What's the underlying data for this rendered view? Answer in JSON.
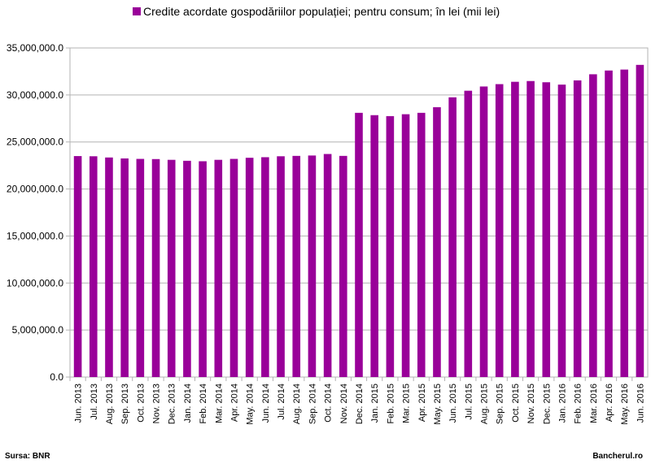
{
  "chart_data": {
    "type": "bar",
    "legend": {
      "label": "Credite acordate gospodăriilor populației; pentru consum; în lei (mii lei)",
      "position": "top-center"
    },
    "color": "#990099",
    "categories": [
      "Jun. 2013",
      "Jul. 2013",
      "Aug. 2013",
      "Sep. 2013",
      "Oct. 2013",
      "Nov. 2013",
      "Dec. 2013",
      "Jan. 2014",
      "Feb. 2014",
      "Mar. 2014",
      "Apr. 2014",
      "May. 2014",
      "Jun. 2014",
      "Jul. 2014",
      "Aug. 2014",
      "Sep. 2014",
      "Oct. 2014",
      "Nov. 2014",
      "Dec. 2014",
      "Jan. 2015",
      "Feb. 2015",
      "Mar. 2015",
      "Apr. 2015",
      "May. 2015",
      "Jun. 2015",
      "Jul. 2015",
      "Aug. 2015",
      "Sep. 2015",
      "Oct. 2015",
      "Nov. 2015",
      "Dec. 2015",
      "Jan. 2016",
      "Feb. 2016",
      "Mar. 2016",
      "Apr. 2016",
      "May. 2016",
      "Jun. 2016"
    ],
    "values": [
      23500000,
      23480000,
      23350000,
      23250000,
      23200000,
      23180000,
      23100000,
      23000000,
      22950000,
      23100000,
      23200000,
      23320000,
      23380000,
      23480000,
      23520000,
      23560000,
      23720000,
      23520000,
      28100000,
      27850000,
      27750000,
      27950000,
      28100000,
      28700000,
      29750000,
      30450000,
      30900000,
      31150000,
      31400000,
      31480000,
      31350000,
      31100000,
      31550000,
      32200000,
      32600000,
      32700000,
      33200000
    ],
    "ylim": [
      0,
      35000000
    ],
    "yticks": [
      "0.0",
      "5,000,000.0",
      "10,000,000.0",
      "15,000,000.0",
      "20,000,000.0",
      "25,000,000.0",
      "30,000,000.0",
      "35,000,000.0"
    ],
    "ytick_values": [
      0,
      5000000,
      10000000,
      15000000,
      20000000,
      25000000,
      30000000,
      35000000
    ],
    "grid": "horizontal"
  },
  "footer": {
    "source": "Sursa: BNR",
    "site": "Bancherul.ro"
  }
}
